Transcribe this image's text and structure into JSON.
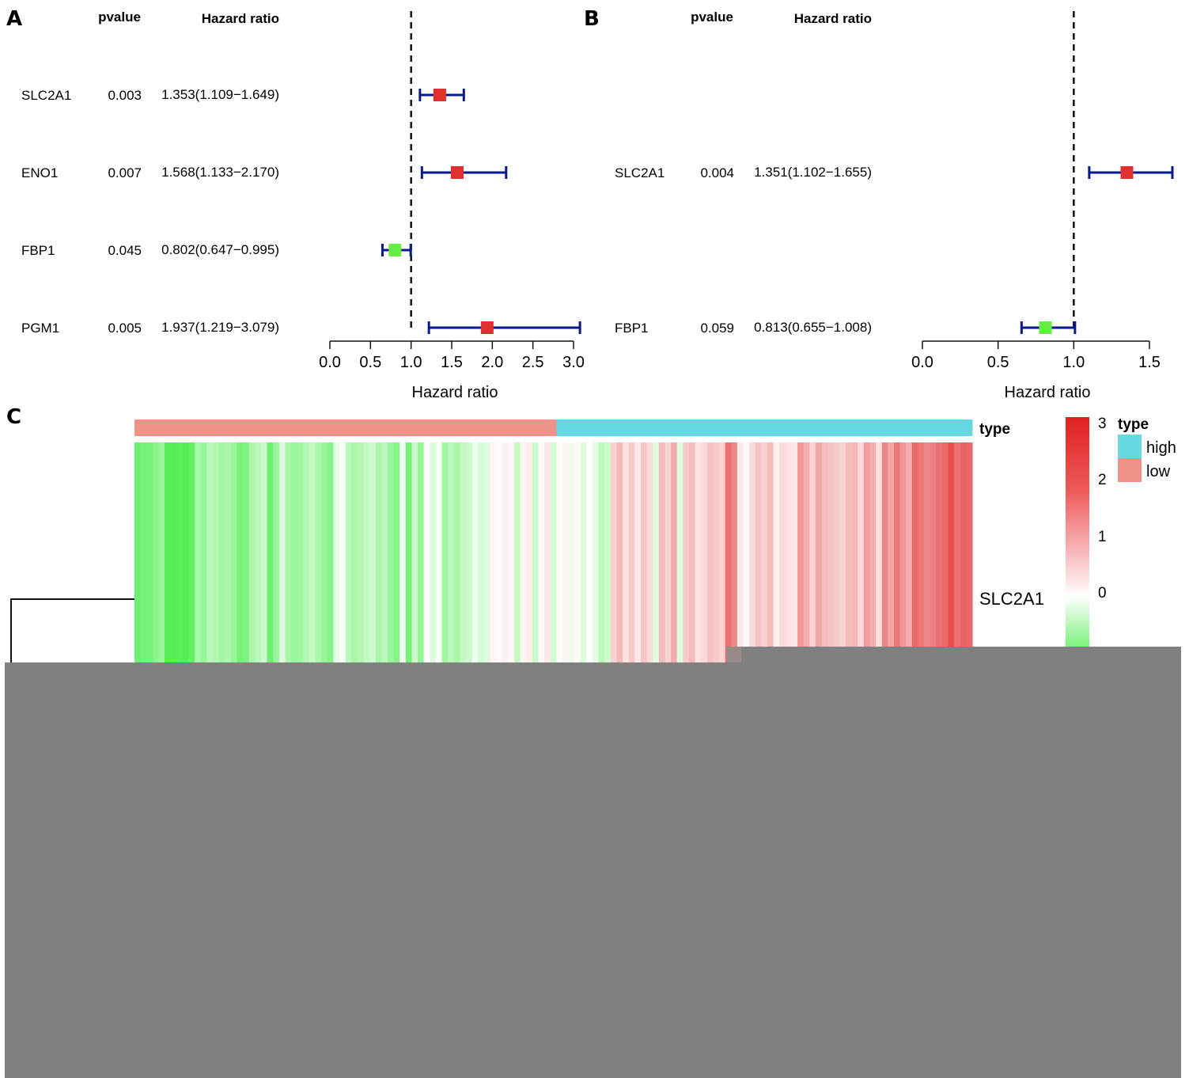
{
  "panels": {
    "A": "A",
    "B": "B",
    "C": "C"
  },
  "chart_data": [
    {
      "type": "forest",
      "panel": "A",
      "column_headers": {
        "pvalue": "pvalue",
        "hazard_ratio": "Hazard ratio"
      },
      "xlabel": "Hazard ratio",
      "xlim": [
        0,
        3.0
      ],
      "x_ticks": [
        "0.0",
        "0.5",
        "1.0",
        "1.5",
        "2.0",
        "2.5",
        "3.0"
      ],
      "reference_line": 1.0,
      "rows": [
        {
          "gene": "SLC2A1",
          "pvalue": "0.003",
          "hr_text": "1.353(1.109−1.649)",
          "hr": 1.353,
          "lo": 1.109,
          "hi": 1.649,
          "color": "#e03131"
        },
        {
          "gene": "ENO1",
          "pvalue": "0.007",
          "hr_text": "1.568(1.133−2.170)",
          "hr": 1.568,
          "lo": 1.133,
          "hi": 2.17,
          "color": "#e03131"
        },
        {
          "gene": "FBP1",
          "pvalue": "0.045",
          "hr_text": "0.802(0.647−0.995)",
          "hr": 0.802,
          "lo": 0.647,
          "hi": 0.995,
          "color": "#66ee44"
        },
        {
          "gene": "PGM1",
          "pvalue": "0.005",
          "hr_text": "1.937(1.219−3.079)",
          "hr": 1.937,
          "lo": 1.219,
          "hi": 3.079,
          "color": "#e03131"
        }
      ]
    },
    {
      "type": "forest",
      "panel": "B",
      "column_headers": {
        "pvalue": "pvalue",
        "hazard_ratio": "Hazard ratio"
      },
      "xlabel": "Hazard ratio",
      "xlim": [
        0,
        1.5
      ],
      "x_ticks": [
        "0.0",
        "0.5",
        "1.0",
        "1.5"
      ],
      "reference_line": 1.0,
      "rows": [
        {
          "gene": "SLC2A1",
          "pvalue": "0.004",
          "hr_text": "1.351(1.102−1.655)",
          "hr": 1.351,
          "lo": 1.102,
          "hi": 1.655,
          "color": "#e03131"
        },
        {
          "gene": "FBP1",
          "pvalue": "0.059",
          "hr_text": "0.813(0.655−1.008)",
          "hr": 0.813,
          "lo": 0.655,
          "hi": 1.008,
          "color": "#66ee44"
        }
      ]
    },
    {
      "type": "heatmap",
      "panel": "C",
      "annotation_label": "type",
      "row_labels": [
        "SLC2A1"
      ],
      "groups": [
        {
          "name": "low",
          "color": "#f0928a",
          "count": 70
        },
        {
          "name": "high",
          "color": "#66d9e0",
          "count": 69
        }
      ],
      "colorbar": {
        "ticks": [
          "3",
          "2",
          "1",
          "0"
        ],
        "range": [
          -1,
          3
        ],
        "colors": {
          "low": "#55ee55",
          "mid": "#ffffff",
          "high": "#e02020"
        }
      },
      "legend": {
        "title": "type",
        "items": [
          {
            "label": "high",
            "color": "#66d9e0"
          },
          {
            "label": "low",
            "color": "#f0928a"
          }
        ]
      },
      "values": [
        -0.85,
        -0.8,
        -0.8,
        -0.7,
        -0.6,
        -1.0,
        -1.0,
        -0.95,
        -1.0,
        -0.9,
        -0.5,
        -0.6,
        -0.4,
        -0.45,
        -0.55,
        -0.5,
        -0.6,
        -0.8,
        -0.75,
        -0.5,
        -0.4,
        -0.3,
        -0.85,
        -0.6,
        -0.2,
        -0.5,
        -0.6,
        -0.55,
        -0.45,
        -0.35,
        -0.5,
        -0.6,
        -0.7,
        -0.15,
        -0.05,
        -0.4,
        -0.5,
        -0.45,
        -0.35,
        -0.3,
        -0.5,
        -0.4,
        -0.6,
        -0.7,
        -0.1,
        -0.8,
        -0.3,
        -0.6,
        0.0,
        -0.2,
        -0.05,
        -0.55,
        -0.4,
        -0.5,
        -0.35,
        -0.3,
        -0.1,
        -0.25,
        -0.2,
        0.15,
        0.05,
        0.2,
        0.1,
        -0.35,
        0.15,
        0.25,
        -0.3,
        0.1,
        0.3,
        -0.25,
        0.05,
        0.15,
        -0.1,
        0.1,
        -0.2,
        0.0,
        -0.15,
        -0.4,
        -0.3,
        0.6,
        0.9,
        0.4,
        0.7,
        0.3,
        0.8,
        0.5,
        -0.2,
        0.9,
        0.6,
        1.1,
        -0.2,
        0.7,
        0.9,
        0.4,
        0.5,
        0.8,
        0.7,
        0.6,
        1.9,
        1.6,
        0.3,
        0.1,
        0.5,
        0.8,
        0.6,
        0.9,
        0.2,
        0.5,
        0.4,
        0.3,
        1.4,
        1.1,
        0.6,
        1.2,
        0.9,
        0.8,
        0.7,
        0.6,
        0.9,
        1.0,
        0.5,
        1.3,
        1.1,
        0.4,
        1.6,
        1.2,
        1.8,
        1.4,
        1.1,
        2.0,
        1.8,
        1.6,
        1.7,
        1.9,
        2.0,
        2.4,
        1.9,
        2.1,
        2.0
      ]
    }
  ]
}
